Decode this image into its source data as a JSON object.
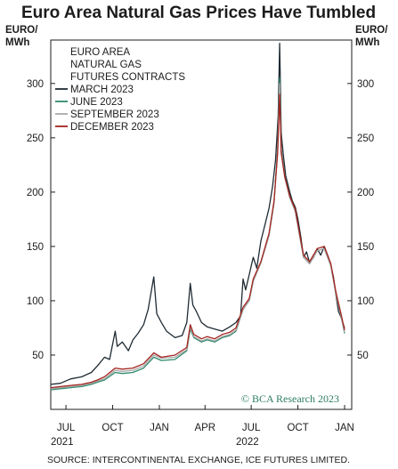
{
  "chart_data": {
    "type": "line",
    "title": "Euro Area Natural Gas Prices Have Tumbled",
    "y_unit_left": [
      "EURO/",
      "MWh"
    ],
    "y_unit_right": [
      "EURO/",
      "MWh"
    ],
    "ylim": [
      0,
      340
    ],
    "yticks": [
      50,
      100,
      150,
      200,
      250,
      300
    ],
    "x_range": [
      "2021-06-01",
      "2023-01-15"
    ],
    "x_ticks": [
      {
        "label": "JUL",
        "date": "2021-07-01"
      },
      {
        "label": "OCT",
        "date": "2021-10-01"
      },
      {
        "label": "JAN",
        "date": "2022-01-01"
      },
      {
        "label": "APR",
        "date": "2022-04-01"
      },
      {
        "label": "JUL",
        "date": "2022-07-01"
      },
      {
        "label": "OCT",
        "date": "2022-10-01"
      },
      {
        "label": "JAN",
        "date": "2023-01-01"
      }
    ],
    "x_year_labels": [
      {
        "label": "2021",
        "date": "2021-06-01"
      },
      {
        "label": "2022",
        "date": "2022-06-01"
      }
    ],
    "legend_title": [
      "EURO AREA",
      "NATURAL GAS",
      "FUTURES CONTRACTS"
    ],
    "legend_placement": "top-left",
    "grid": false,
    "series": [
      {
        "name": "MARCH 2023",
        "color": "#1f2b33",
        "points": [
          [
            "2021-06-01",
            23
          ],
          [
            "2021-06-20",
            24
          ],
          [
            "2021-07-10",
            28
          ],
          [
            "2021-08-01",
            30
          ],
          [
            "2021-08-20",
            34
          ],
          [
            "2021-09-01",
            40
          ],
          [
            "2021-09-15",
            48
          ],
          [
            "2021-09-25",
            46
          ],
          [
            "2021-10-06",
            72
          ],
          [
            "2021-10-10",
            58
          ],
          [
            "2021-10-20",
            62
          ],
          [
            "2021-11-01",
            54
          ],
          [
            "2021-11-10",
            64
          ],
          [
            "2021-11-20",
            70
          ],
          [
            "2021-12-01",
            78
          ],
          [
            "2021-12-10",
            92
          ],
          [
            "2021-12-21",
            122
          ],
          [
            "2021-12-27",
            88
          ],
          [
            "2022-01-05",
            80
          ],
          [
            "2022-01-15",
            72
          ],
          [
            "2022-02-01",
            66
          ],
          [
            "2022-02-15",
            68
          ],
          [
            "2022-02-24",
            80
          ],
          [
            "2022-03-03",
            116
          ],
          [
            "2022-03-08",
            96
          ],
          [
            "2022-03-15",
            90
          ],
          [
            "2022-03-25",
            80
          ],
          [
            "2022-04-05",
            76
          ],
          [
            "2022-04-20",
            74
          ],
          [
            "2022-05-05",
            72
          ],
          [
            "2022-05-20",
            76
          ],
          [
            "2022-06-01",
            80
          ],
          [
            "2022-06-10",
            86
          ],
          [
            "2022-06-15",
            120
          ],
          [
            "2022-06-20",
            110
          ],
          [
            "2022-06-27",
            124
          ],
          [
            "2022-07-05",
            140
          ],
          [
            "2022-07-12",
            130
          ],
          [
            "2022-07-20",
            155
          ],
          [
            "2022-07-27",
            168
          ],
          [
            "2022-08-05",
            185
          ],
          [
            "2022-08-12",
            205
          ],
          [
            "2022-08-18",
            230
          ],
          [
            "2022-08-23",
            270
          ],
          [
            "2022-08-26",
            337
          ],
          [
            "2022-08-29",
            255
          ],
          [
            "2022-09-02",
            235
          ],
          [
            "2022-09-07",
            215
          ],
          [
            "2022-09-15",
            200
          ],
          [
            "2022-09-20",
            192
          ],
          [
            "2022-09-26",
            186
          ],
          [
            "2022-10-01",
            175
          ],
          [
            "2022-10-07",
            158
          ],
          [
            "2022-10-12",
            140
          ],
          [
            "2022-10-18",
            145
          ],
          [
            "2022-10-24",
            135
          ],
          [
            "2022-11-01",
            140
          ],
          [
            "2022-11-08",
            148
          ],
          [
            "2022-11-15",
            142
          ],
          [
            "2022-11-22",
            150
          ],
          [
            "2022-11-30",
            140
          ],
          [
            "2022-12-05",
            132
          ],
          [
            "2022-12-10",
            122
          ],
          [
            "2022-12-15",
            105
          ],
          [
            "2022-12-20",
            90
          ],
          [
            "2022-12-25",
            85
          ],
          [
            "2022-12-28",
            80
          ],
          [
            "2023-01-01",
            75
          ]
        ]
      },
      {
        "name": "JUNE 2023",
        "color": "#2f8a6c",
        "points": [
          [
            "2021-06-01",
            18
          ],
          [
            "2021-06-20",
            19
          ],
          [
            "2021-07-10",
            20
          ],
          [
            "2021-08-01",
            21
          ],
          [
            "2021-08-20",
            23
          ],
          [
            "2021-09-01",
            25
          ],
          [
            "2021-09-15",
            27
          ],
          [
            "2021-10-06",
            34
          ],
          [
            "2021-10-20",
            33
          ],
          [
            "2021-11-10",
            34
          ],
          [
            "2021-12-01",
            38
          ],
          [
            "2021-12-21",
            48
          ],
          [
            "2022-01-05",
            45
          ],
          [
            "2022-02-01",
            46
          ],
          [
            "2022-02-24",
            54
          ],
          [
            "2022-03-03",
            74
          ],
          [
            "2022-03-10",
            66
          ],
          [
            "2022-03-25",
            62
          ],
          [
            "2022-04-05",
            64
          ],
          [
            "2022-04-20",
            62
          ],
          [
            "2022-05-05",
            66
          ],
          [
            "2022-05-20",
            68
          ],
          [
            "2022-06-01",
            72
          ],
          [
            "2022-06-15",
            92
          ],
          [
            "2022-06-27",
            100
          ],
          [
            "2022-07-05",
            118
          ],
          [
            "2022-07-20",
            135
          ],
          [
            "2022-08-05",
            160
          ],
          [
            "2022-08-15",
            190
          ],
          [
            "2022-08-22",
            240
          ],
          [
            "2022-08-26",
            305
          ],
          [
            "2022-08-29",
            240
          ],
          [
            "2022-09-05",
            215
          ],
          [
            "2022-09-15",
            195
          ],
          [
            "2022-09-26",
            182
          ],
          [
            "2022-10-05",
            158
          ],
          [
            "2022-10-12",
            140
          ],
          [
            "2022-10-24",
            134
          ],
          [
            "2022-11-08",
            146
          ],
          [
            "2022-11-22",
            148
          ],
          [
            "2022-12-05",
            132
          ],
          [
            "2022-12-15",
            106
          ],
          [
            "2022-12-25",
            86
          ],
          [
            "2023-01-01",
            70
          ]
        ]
      },
      {
        "name": "SEPTEMBER 2023",
        "color": "#a9a9a9",
        "points": [
          [
            "2021-06-01",
            19
          ],
          [
            "2021-06-20",
            20
          ],
          [
            "2021-07-10",
            21
          ],
          [
            "2021-08-01",
            22
          ],
          [
            "2021-08-20",
            24
          ],
          [
            "2021-09-01",
            26
          ],
          [
            "2021-09-15",
            28
          ],
          [
            "2021-10-06",
            36
          ],
          [
            "2021-10-20",
            35
          ],
          [
            "2021-11-10",
            36
          ],
          [
            "2021-12-01",
            40
          ],
          [
            "2021-12-21",
            50
          ],
          [
            "2022-01-05",
            47
          ],
          [
            "2022-02-01",
            48
          ],
          [
            "2022-02-24",
            55
          ],
          [
            "2022-03-03",
            76
          ],
          [
            "2022-03-10",
            67
          ],
          [
            "2022-03-25",
            63
          ],
          [
            "2022-04-05",
            65
          ],
          [
            "2022-04-20",
            63
          ],
          [
            "2022-05-05",
            67
          ],
          [
            "2022-05-20",
            69
          ],
          [
            "2022-06-01",
            73
          ],
          [
            "2022-06-15",
            92
          ],
          [
            "2022-06-27",
            100
          ],
          [
            "2022-07-05",
            118
          ],
          [
            "2022-07-20",
            135
          ],
          [
            "2022-08-05",
            160
          ],
          [
            "2022-08-15",
            190
          ],
          [
            "2022-08-22",
            238
          ],
          [
            "2022-08-26",
            300
          ],
          [
            "2022-08-29",
            238
          ],
          [
            "2022-09-05",
            214
          ],
          [
            "2022-09-15",
            195
          ],
          [
            "2022-09-26",
            182
          ],
          [
            "2022-10-05",
            158
          ],
          [
            "2022-10-12",
            140
          ],
          [
            "2022-10-24",
            134
          ],
          [
            "2022-11-08",
            146
          ],
          [
            "2022-11-22",
            148
          ],
          [
            "2022-12-05",
            132
          ],
          [
            "2022-12-15",
            106
          ],
          [
            "2022-12-25",
            86
          ],
          [
            "2023-01-01",
            71
          ]
        ]
      },
      {
        "name": "DECEMBER 2023",
        "color": "#a3241f",
        "points": [
          [
            "2021-06-01",
            20
          ],
          [
            "2021-06-20",
            21
          ],
          [
            "2021-07-10",
            22
          ],
          [
            "2021-08-01",
            23
          ],
          [
            "2021-08-20",
            25
          ],
          [
            "2021-09-01",
            27
          ],
          [
            "2021-09-15",
            30
          ],
          [
            "2021-10-06",
            38
          ],
          [
            "2021-10-20",
            37
          ],
          [
            "2021-11-10",
            38
          ],
          [
            "2021-12-01",
            42
          ],
          [
            "2021-12-21",
            52
          ],
          [
            "2022-01-05",
            48
          ],
          [
            "2022-02-01",
            50
          ],
          [
            "2022-02-24",
            57
          ],
          [
            "2022-03-03",
            78
          ],
          [
            "2022-03-10",
            69
          ],
          [
            "2022-03-25",
            65
          ],
          [
            "2022-04-05",
            67
          ],
          [
            "2022-04-20",
            65
          ],
          [
            "2022-05-05",
            69
          ],
          [
            "2022-05-20",
            71
          ],
          [
            "2022-06-01",
            75
          ],
          [
            "2022-06-15",
            94
          ],
          [
            "2022-06-27",
            102
          ],
          [
            "2022-07-05",
            120
          ],
          [
            "2022-07-20",
            136
          ],
          [
            "2022-08-05",
            162
          ],
          [
            "2022-08-15",
            192
          ],
          [
            "2022-08-22",
            236
          ],
          [
            "2022-08-26",
            290
          ],
          [
            "2022-08-29",
            236
          ],
          [
            "2022-09-05",
            214
          ],
          [
            "2022-09-15",
            196
          ],
          [
            "2022-09-26",
            184
          ],
          [
            "2022-10-05",
            160
          ],
          [
            "2022-10-12",
            142
          ],
          [
            "2022-10-24",
            136
          ],
          [
            "2022-11-08",
            148
          ],
          [
            "2022-11-22",
            150
          ],
          [
            "2022-12-05",
            134
          ],
          [
            "2022-12-15",
            108
          ],
          [
            "2022-12-25",
            88
          ],
          [
            "2023-01-01",
            73
          ]
        ]
      }
    ],
    "watermark": "© BCA Research 2023",
    "source": "SOURCE: INTERCONTINENTAL EXCHANGE, ICE FUTURES LIMITED."
  }
}
